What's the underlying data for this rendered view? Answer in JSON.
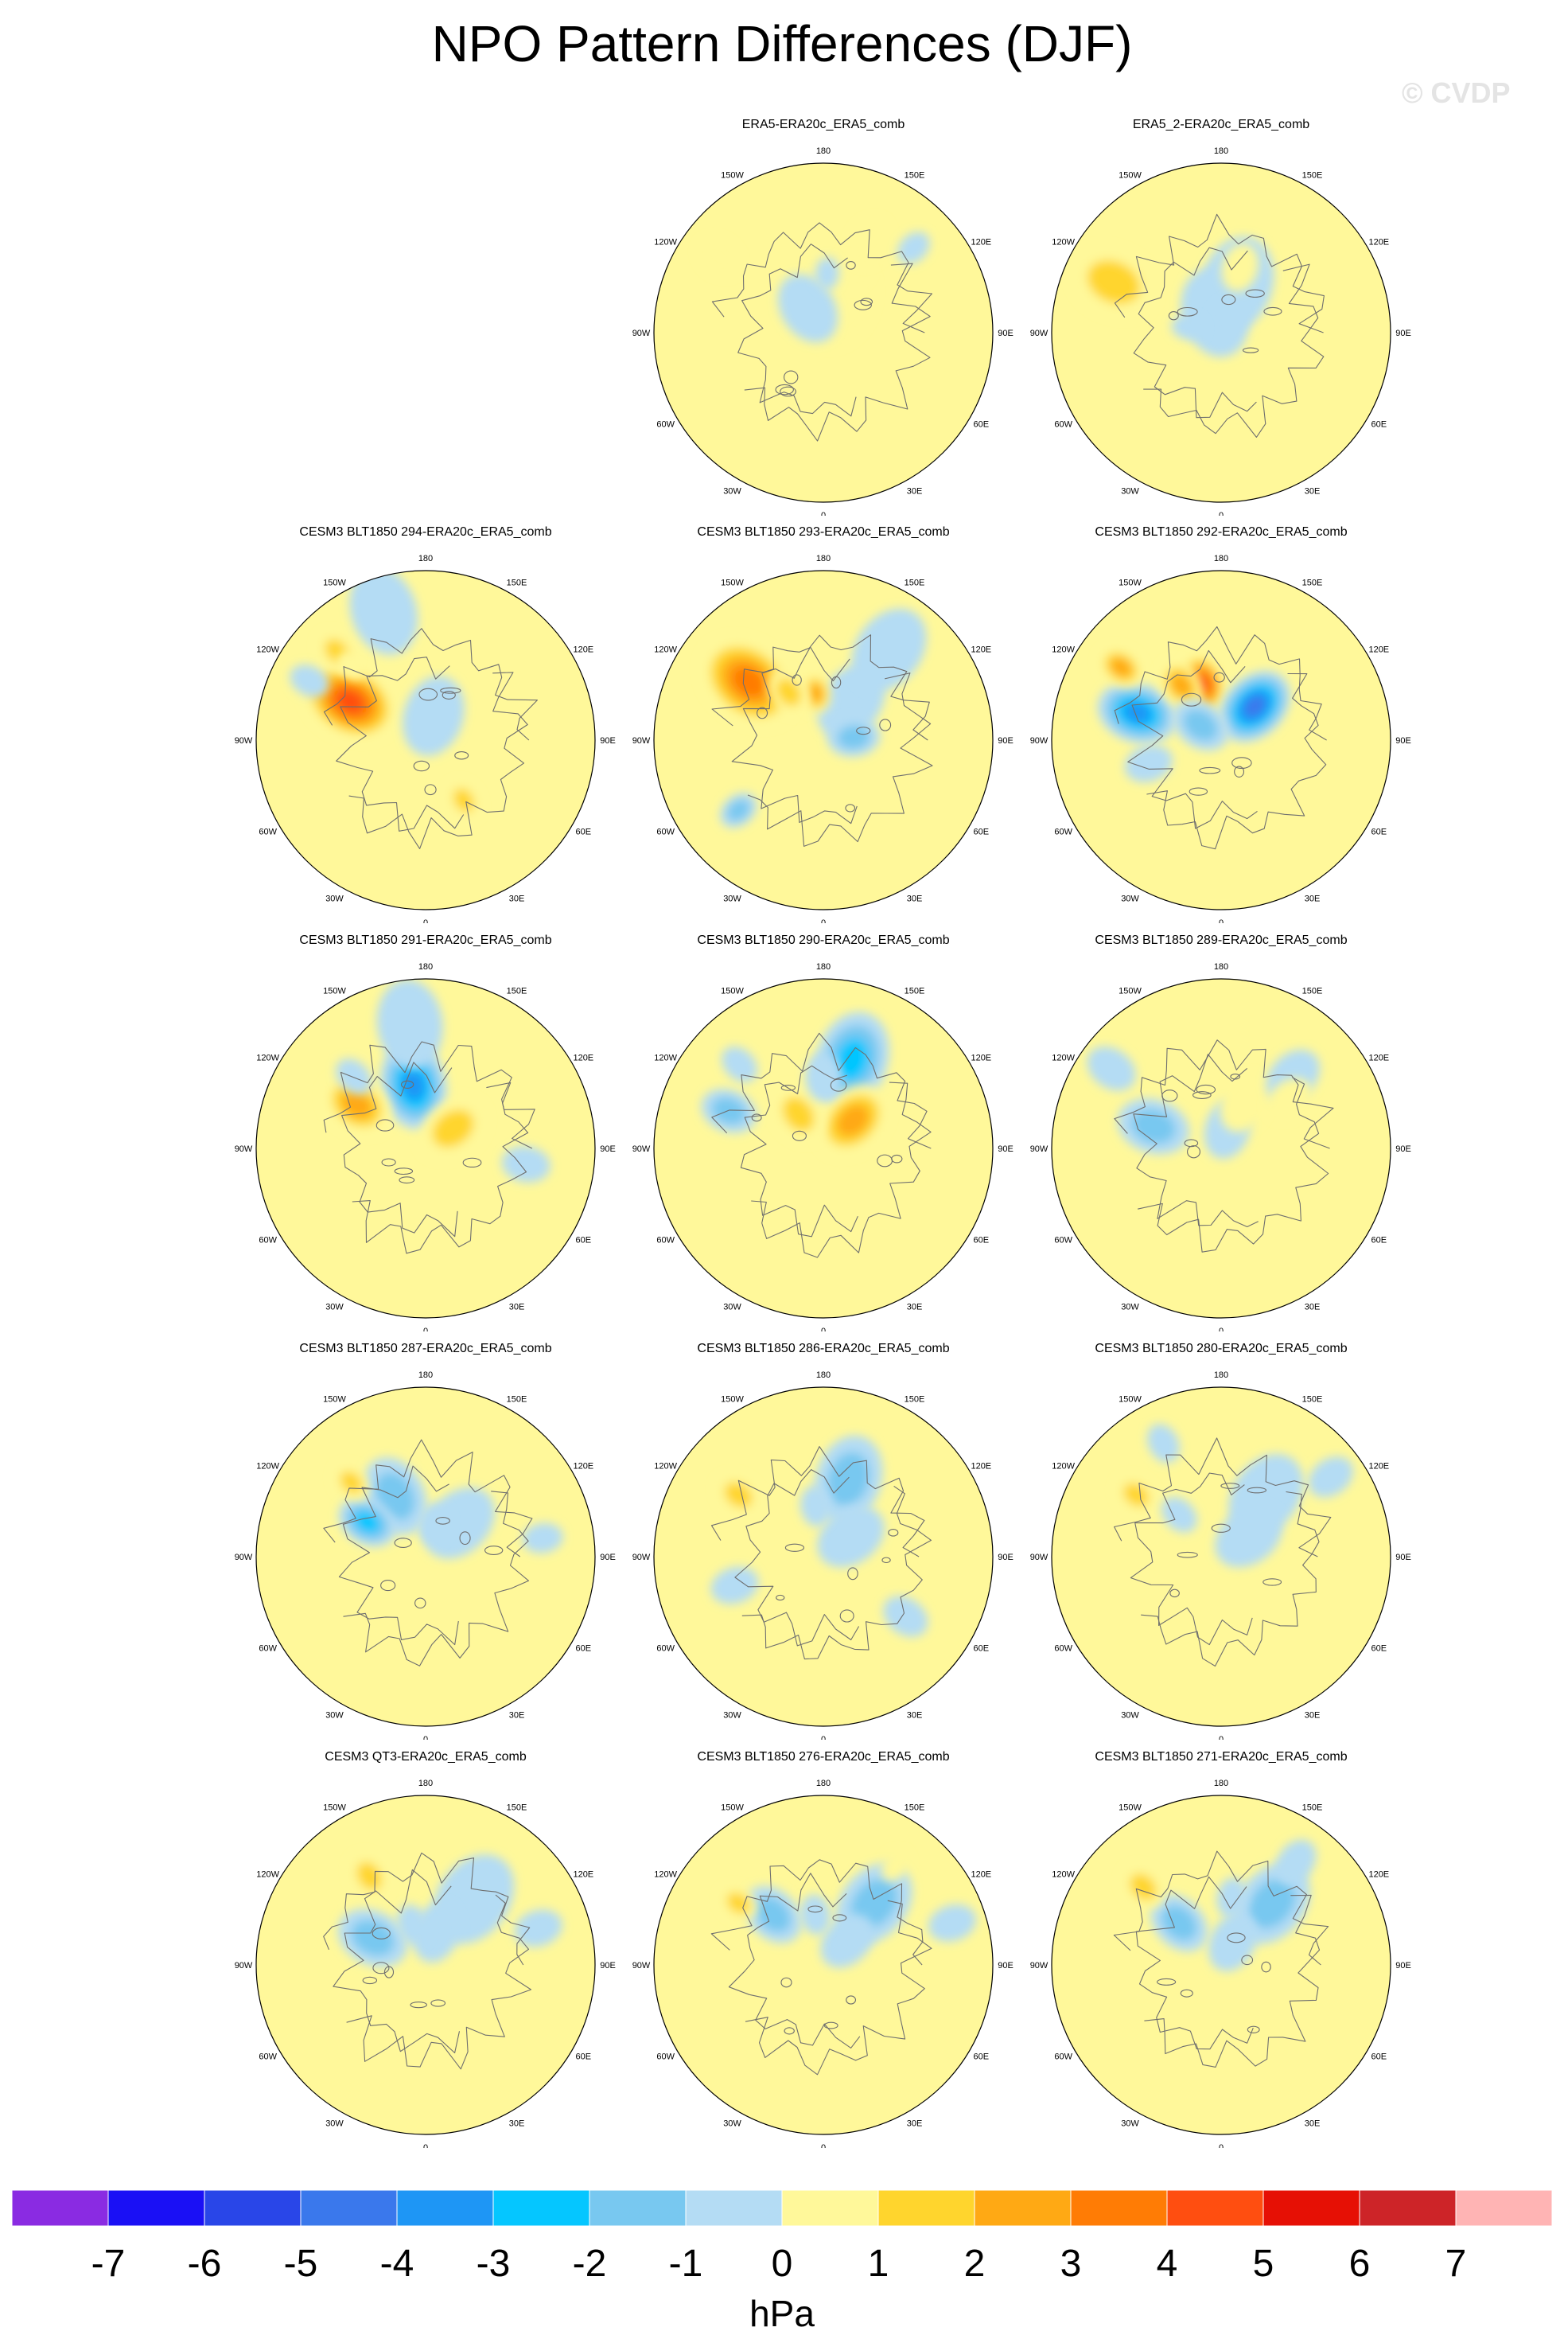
{
  "title": "NPO Pattern Differences (DJF)",
  "watermark": "© CVDP",
  "lon_labels": [
    "180",
    "150E",
    "120E",
    "90E",
    "60E",
    "30E",
    "0",
    "30W",
    "60W",
    "90W",
    "120W",
    "150W"
  ],
  "colorbar": {
    "units": "hPa",
    "tick_labels": [
      "-7",
      "-6",
      "-5",
      "-4",
      "-3",
      "-2",
      "-1",
      "0",
      "1",
      "2",
      "3",
      "4",
      "5",
      "6",
      "7"
    ],
    "colors": [
      "#8a2be2",
      "#1a10f5",
      "#2946e8",
      "#3a78ec",
      "#1e96f5",
      "#05c6ff",
      "#78c8f0",
      "#b4dcf4",
      "#fff89a",
      "#ffd52d",
      "#ffa914",
      "#ff7c05",
      "#ff4e10",
      "#e61005",
      "#cd2428",
      "#ffb4b4"
    ]
  },
  "chart_data": {
    "type": "contour-map",
    "projection": "polar stereographic (Northern Hemisphere)",
    "panels": [
      {
        "title": "ERA5-ERA20c_ERA5_comb",
        "blobs": [
          [
            0.2,
            0.14,
            0.23,
            1
          ],
          [
            0.43,
            0.14,
            0.11,
            1
          ],
          [
            0.6,
            0.15,
            0.12,
            1
          ],
          [
            0.73,
            0.26,
            0.09,
            -1
          ],
          [
            0.17,
            -0.18,
            0.18,
            -1
          ],
          [
            0.76,
            -0.3,
            0.11,
            1
          ],
          [
            0.35,
            0.02,
            0.08,
            -1
          ]
        ]
      },
      {
        "title": "ERA5_2-ERA20c_ERA5_comb",
        "blobs": [
          [
            0.3,
            0.1,
            0.24,
            -1
          ],
          [
            0.12,
            -0.1,
            0.22,
            -1
          ],
          [
            0.7,
            -0.36,
            0.22,
            2
          ],
          [
            0.4,
            0.09,
            0.12,
            1
          ],
          [
            0.08,
            0.12,
            0.1,
            -1
          ],
          [
            0.2,
            -0.45,
            0.08,
            -1
          ]
        ]
      },
      {
        "title": "CESM3 BLT1850 294-ERA20c_ERA5_comb",
        "blobs": [
          [
            0.5,
            -0.35,
            0.24,
            5
          ],
          [
            0.15,
            0.1,
            0.2,
            -1
          ],
          [
            0.8,
            -0.1,
            0.22,
            -1
          ],
          [
            0.77,
            -0.35,
            0.1,
            -1
          ],
          [
            0.74,
            -0.25,
            0.11,
            2
          ],
          [
            0.42,
            0.82,
            0.1,
            2
          ],
          [
            0.62,
            -0.25,
            0.08,
            1
          ]
        ]
      },
      {
        "title": "CESM3 BLT1850 293-ERA20c_ERA5_comb",
        "blobs": [
          [
            0.56,
            -0.29,
            0.26,
            4
          ],
          [
            0.28,
            0.2,
            0.2,
            -1
          ],
          [
            0.18,
            0.47,
            0.13,
            -2
          ],
          [
            0.65,
            -0.72,
            0.1,
            -2
          ],
          [
            0.66,
            0.2,
            0.22,
            -1
          ],
          [
            0.28,
            -0.05,
            0.1,
            3
          ],
          [
            0.35,
            -0.2,
            0.12,
            2
          ]
        ]
      },
      {
        "title": "CESM3 BLT1850 292-ERA20c_ERA5_comb",
        "blobs": [
          [
            0.52,
            -0.4,
            0.2,
            -4
          ],
          [
            0.35,
            -0.1,
            0.15,
            5
          ],
          [
            0.28,
            0.25,
            0.2,
            -5
          ],
          [
            0.4,
            -0.2,
            0.13,
            3
          ],
          [
            0.73,
            -0.3,
            0.12,
            3
          ],
          [
            0.15,
            -0.3,
            0.15,
            -2
          ],
          [
            0.45,
            -0.6,
            0.12,
            -1
          ]
        ]
      },
      {
        "title": "CESM3 BLT1850 291-ERA20c_ERA5_comb",
        "blobs": [
          [
            0.38,
            -0.06,
            0.22,
            -4
          ],
          [
            0.48,
            -0.32,
            0.18,
            3
          ],
          [
            0.2,
            0.3,
            0.18,
            2
          ],
          [
            0.74,
            -0.04,
            0.22,
            -1
          ],
          [
            0.6,
            0.55,
            0.12,
            -1
          ],
          [
            0.6,
            -0.25,
            0.1,
            -1
          ]
        ]
      },
      {
        "title": "CESM3 BLT1850 290-ERA20c_ERA5_comb",
        "blobs": [
          [
            0.55,
            0.1,
            0.24,
            -3
          ],
          [
            0.24,
            0.26,
            0.2,
            3
          ],
          [
            0.6,
            -0.38,
            0.14,
            -2
          ],
          [
            0.25,
            -0.2,
            0.15,
            2
          ],
          [
            0.42,
            0.0,
            0.12,
            -1
          ],
          [
            0.7,
            -0.25,
            0.1,
            -1
          ]
        ]
      },
      {
        "title": "CESM3 BLT1850 289-ERA20c_ERA5_comb",
        "blobs": [
          [
            0.42,
            -0.4,
            0.18,
            -2
          ],
          [
            0.12,
            0.1,
            0.15,
            -1
          ],
          [
            0.3,
            0.15,
            0.15,
            1
          ],
          [
            0.6,
            0.25,
            0.15,
            -1
          ],
          [
            0.8,
            -0.3,
            0.13,
            -1
          ],
          [
            0.5,
            0.3,
            0.12,
            1
          ]
        ]
      },
      {
        "title": "CESM3 BLT1850 287-ERA20c_ERA5_comb",
        "blobs": [
          [
            0.4,
            -0.15,
            0.2,
            -2
          ],
          [
            0.4,
            -0.33,
            0.15,
            -3
          ],
          [
            0.28,
            0.25,
            0.2,
            -1
          ],
          [
            0.62,
            -0.25,
            0.1,
            2
          ],
          [
            0.7,
            0.45,
            0.1,
            -1
          ],
          [
            0.2,
            0.08,
            0.1,
            -1
          ]
        ]
      },
      {
        "title": "CESM3 BLT1850 286-ERA20c_ERA5_comb",
        "blobs": [
          [
            0.48,
            0.1,
            0.22,
            -2
          ],
          [
            0.2,
            0.3,
            0.18,
            -1
          ],
          [
            0.62,
            -0.3,
            0.12,
            2
          ],
          [
            0.55,
            -0.6,
            0.12,
            -1
          ],
          [
            0.6,
            0.7,
            0.12,
            -1
          ],
          [
            0.3,
            -0.05,
            0.1,
            -1
          ]
        ]
      },
      {
        "title": "CESM3 BLT1850 280-ERA20c_ERA5_comb",
        "blobs": [
          [
            0.45,
            0.2,
            0.22,
            -1
          ],
          [
            0.2,
            0.3,
            0.18,
            -1
          ],
          [
            0.62,
            -0.3,
            0.11,
            2
          ],
          [
            0.8,
            0.3,
            0.12,
            -1
          ],
          [
            0.75,
            -0.15,
            0.1,
            -1
          ],
          [
            0.35,
            -0.25,
            0.1,
            -1
          ]
        ]
      },
      {
        "title": "CESM3 QT3-ERA20c_ERA5_comb",
        "blobs": [
          [
            0.48,
            0.2,
            0.24,
            -1
          ],
          [
            0.35,
            -0.35,
            0.18,
            -2
          ],
          [
            0.62,
            -0.18,
            0.12,
            2
          ],
          [
            0.2,
            0.1,
            0.15,
            -1
          ],
          [
            0.7,
            0.4,
            0.12,
            -1
          ],
          [
            0.25,
            -0.1,
            0.1,
            -1
          ]
        ]
      },
      {
        "title": "CESM3 BLT1850 276-ERA20c_ERA5_comb",
        "blobs": [
          [
            0.47,
            0.22,
            0.22,
            -2
          ],
          [
            0.42,
            -0.25,
            0.16,
            -2
          ],
          [
            0.62,
            -0.3,
            0.1,
            2
          ],
          [
            0.2,
            0.25,
            0.15,
            -1
          ],
          [
            0.8,
            0.4,
            0.12,
            -1
          ],
          [
            0.3,
            -0.05,
            0.1,
            -1
          ],
          [
            0.72,
            0.2,
            0.08,
            1
          ]
        ]
      },
      {
        "title": "CESM3 BLT1850 271-ERA20c_ERA5_comb",
        "blobs": [
          [
            0.47,
            0.22,
            0.22,
            -2
          ],
          [
            0.35,
            -0.25,
            0.16,
            -2
          ],
          [
            0.65,
            -0.25,
            0.12,
            2
          ],
          [
            0.15,
            0.15,
            0.15,
            -1
          ],
          [
            0.75,
            0.2,
            0.12,
            -1
          ],
          [
            0.4,
            0.05,
            0.1,
            -1
          ]
        ]
      }
    ]
  }
}
